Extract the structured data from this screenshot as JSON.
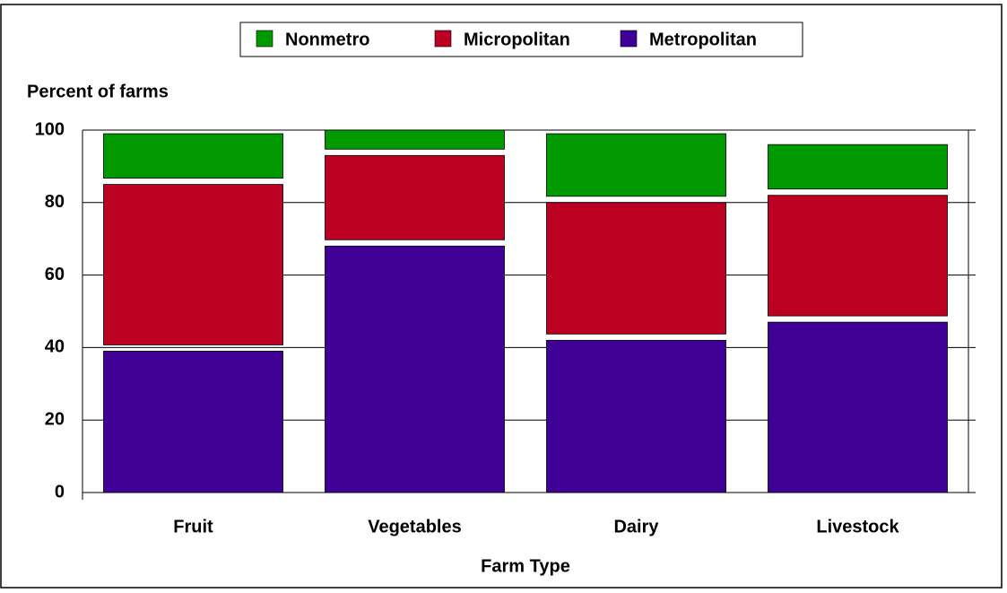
{
  "chart_data": {
    "type": "stacked_bar",
    "ylabel": "Percent of farms",
    "xlabel": "Farm Type",
    "categories": [
      "Fruit",
      "Vegetables",
      "Dairy",
      "Livestock"
    ],
    "series": [
      {
        "name": "Metropolitan",
        "color": "#3f0096",
        "values": [
          39,
          68,
          42,
          47
        ]
      },
      {
        "name": "Micropolitan",
        "color": "#bb0022",
        "values": [
          46,
          25,
          38,
          35
        ]
      },
      {
        "name": "Nonmetro",
        "color": "#009900",
        "values": [
          14,
          7,
          19,
          14
        ]
      }
    ],
    "ylim": [
      0,
      100
    ],
    "yticks": [
      0,
      20,
      40,
      60,
      80,
      100
    ],
    "grid": true
  }
}
